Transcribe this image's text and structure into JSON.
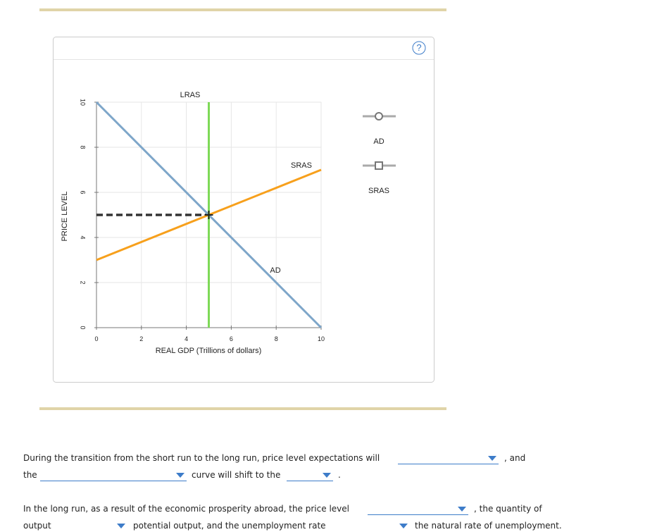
{
  "chart_data": {
    "type": "line",
    "xlabel": "REAL GDP (Trillions of dollars)",
    "ylabel": "PRICE LEVEL",
    "xlim": [
      0,
      10
    ],
    "ylim": [
      0,
      10
    ],
    "xticks": [
      0,
      2,
      4,
      6,
      8,
      10
    ],
    "yticks": [
      0,
      2,
      4,
      6,
      8,
      10
    ],
    "grid": true,
    "series": [
      {
        "name": "AD",
        "color": "#7ea6c9",
        "x": [
          0,
          10
        ],
        "values": [
          10,
          0
        ],
        "in_legend": true,
        "legend_marker": "circle"
      },
      {
        "name": "SRAS",
        "color": "#f7a01c",
        "x": [
          0,
          10
        ],
        "values": [
          3,
          7
        ],
        "in_legend": true,
        "legend_marker": "square"
      },
      {
        "name": "LRAS",
        "color": "#7ed957",
        "x": [
          5,
          5
        ],
        "values": [
          0,
          10
        ],
        "in_legend": false
      }
    ],
    "guides": [
      {
        "x": [
          0,
          5
        ],
        "values": [
          5,
          5
        ],
        "color": "#333333"
      }
    ]
  },
  "question": {
    "row1": [
      "During the transition from the short run to the long run, price level expectations will",
      ", and"
    ],
    "row2": [
      "the",
      "curve will shift to the",
      "."
    ],
    "row3": [
      "In the long run, as a result of the economic prosperity abroad, the price level",
      ", the quantity of"
    ],
    "row4": [
      "output",
      "potential output, and the unemployment rate",
      "the natural rate of unemployment."
    ]
  }
}
